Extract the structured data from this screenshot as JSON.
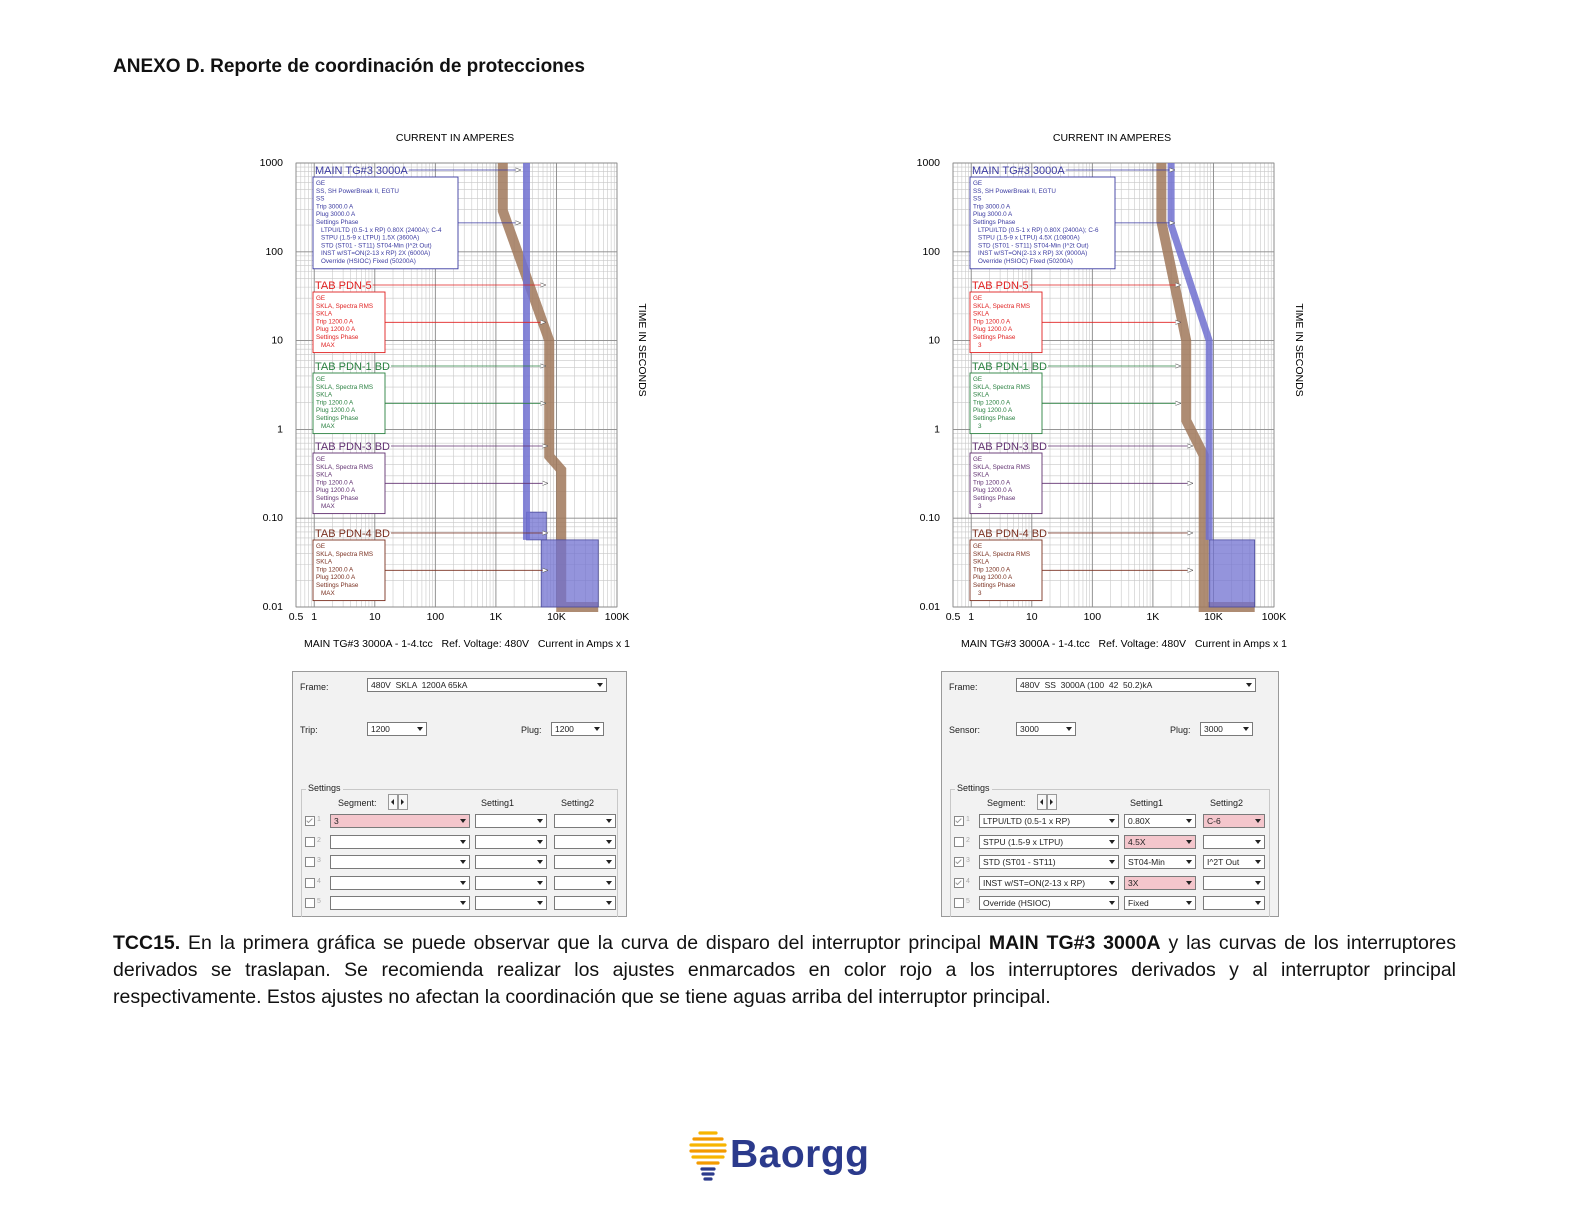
{
  "header": {
    "title": "ANEXO D. Reporte de coordinación de protecciones"
  },
  "chart_data": [
    {
      "type": "line",
      "title": "CURRENT IN AMPERES",
      "y_label": "TIME IN SECONDS",
      "footer": "MAIN TG#3 3000A - 1-4.tcc   Ref. Voltage: 480V   Current in Amps x 1",
      "log_x": true,
      "log_y": true,
      "grid": true,
      "xlim": [
        0.5,
        100000
      ],
      "ylim": [
        0.01,
        1000
      ],
      "xticks": [
        0.5,
        1,
        10,
        100,
        {
          "value": 1000,
          "label": "1K"
        },
        {
          "value": 10000,
          "label": "10K"
        },
        {
          "value": 100000,
          "label": "100K"
        }
      ],
      "yticks": [
        0.01,
        {
          "value": 0.1,
          "label": "0.10"
        },
        1,
        10,
        100,
        1000
      ],
      "devices": [
        {
          "name": "MAIN TG#3 3000A",
          "color": "#3a3aa0",
          "lines": [
            "GE",
            "SS, SH PowerBreak II, EGTU",
            "SS",
            "Trip 3000.0 A",
            "Plug 3000.0 A",
            "Settings Phase",
            "LTPU/LTD (0.5-1 x RP) 0.80X (2400A); C-4",
            "STPU (1.5-9 x LTPU) 1.5X (3600A)",
            "STD (ST01 - ST11) ST04-Min (I^2t Out)",
            "INST w/ST=ON(2-13 x RP) 2X (6000A)",
            "Override (HSIOC) Fixed (50200A)"
          ]
        },
        {
          "name": "TAB PDN-5",
          "color": "#e02020",
          "lines": [
            "GE",
            "SKLA, Spectra RMS",
            "SKLA",
            "Trip 1200.0 A",
            "Plug 1200.0 A",
            "Settings Phase",
            "MAX"
          ]
        },
        {
          "name": "TAB PDN-1 BD",
          "color": "#2a8040",
          "lines": [
            "GE",
            "SKLA, Spectra RMS",
            "SKLA",
            "Trip 1200.0 A",
            "Plug 1200.0 A",
            "Settings Phase",
            "MAX"
          ]
        },
        {
          "name": "TAB PDN-3 BD",
          "color": "#603070",
          "lines": [
            "GE",
            "SKLA, Spectra RMS",
            "SKLA",
            "Trip 1200.0 A",
            "Plug 1200.0 A",
            "Settings Phase",
            "MAX"
          ]
        },
        {
          "name": "TAB PDN-4 BD",
          "color": "#7a3020",
          "lines": [
            "GE",
            "SKLA, Spectra RMS",
            "SKLA",
            "Trip 1200.0 A",
            "Plug 1200.0 A",
            "Settings Phase",
            "MAX"
          ]
        }
      ],
      "series": [
        {
          "color": "#a0785a",
          "x": [
            1300,
            1300,
            7600,
            7600,
            12000,
            12000,
            49000
          ],
          "values": [
            1000,
            290,
            10,
            0.5,
            0.35,
            0.01,
            0.01
          ]
        },
        {
          "color": "#7070d0",
          "x": [
            3200,
            3200
          ],
          "values": [
            1000,
            0.057
          ],
          "regions": [
            {
              "x": [
                3200,
                6800
              ],
              "y": [
                0.057,
                0.117
              ]
            },
            {
              "x": [
                5600,
                49000
              ],
              "y": [
                0.01,
                0.057
              ]
            }
          ]
        }
      ]
    },
    {
      "type": "line",
      "title": "CURRENT IN AMPERES",
      "y_label": "TIME IN SECONDS",
      "footer": "MAIN TG#3 3000A - 1-4.tcc   Ref. Voltage: 480V   Current in Amps x 1",
      "log_x": true,
      "log_y": true,
      "grid": true,
      "xlim": [
        0.5,
        100000
      ],
      "ylim": [
        0.01,
        1000
      ],
      "xticks": [
        0.5,
        1,
        10,
        100,
        {
          "value": 1000,
          "label": "1K"
        },
        {
          "value": 10000,
          "label": "10K"
        },
        {
          "value": 100000,
          "label": "100K"
        }
      ],
      "yticks": [
        0.01,
        {
          "value": 0.1,
          "label": "0.10"
        },
        1,
        10,
        100,
        1000
      ],
      "devices": [
        {
          "name": "MAIN TG#3 3000A",
          "color": "#3a3aa0",
          "lines": [
            "GE",
            "SS, SH PowerBreak II, EGTU",
            "SS",
            "Trip 3000.0 A",
            "Plug 3000.0 A",
            "Settings Phase",
            "LTPU/LTD (0.5-1 x RP) 0.80X (2400A); C-6",
            "STPU (1.5-9 x LTPU) 4.5X (10800A)",
            "STD (ST01 - ST11) ST04-Min (I^2t Out)",
            "INST w/ST=ON(2-13 x RP) 3X (9000A)",
            "Override (HSIOC) Fixed (50200A)"
          ]
        },
        {
          "name": "TAB PDN-5",
          "color": "#e02020",
          "lines": [
            "GE",
            "SKLA, Spectra RMS",
            "SKLA",
            "Trip 1200.0 A",
            "Plug 1200.0 A",
            "Settings Phase",
            "3"
          ]
        },
        {
          "name": "TAB PDN-1 BD",
          "color": "#2a8040",
          "lines": [
            "GE",
            "SKLA, Spectra RMS",
            "SKLA",
            "Trip 1200.0 A",
            "Plug 1200.0 A",
            "Settings Phase",
            "3"
          ]
        },
        {
          "name": "TAB PDN-3 BD",
          "color": "#603070",
          "lines": [
            "GE",
            "SKLA, Spectra RMS",
            "SKLA",
            "Trip 1200.0 A",
            "Plug 1200.0 A",
            "Settings Phase",
            "3"
          ]
        },
        {
          "name": "TAB PDN-4 BD",
          "color": "#7a3020",
          "lines": [
            "GE",
            "SKLA, Spectra RMS",
            "SKLA",
            "Trip 1200.0 A",
            "Plug 1200.0 A",
            "Settings Phase",
            "3"
          ]
        }
      ],
      "series": [
        {
          "color": "#a0785a",
          "x": [
            1380,
            1380,
            3550,
            3550,
            6900,
            6900,
            48000
          ],
          "values": [
            1000,
            220,
            10,
            1.26,
            0.51,
            0.01,
            0.01
          ]
        },
        {
          "color": "#7070d0",
          "x": [
            2000,
            2000,
            8500,
            8500
          ],
          "values": [
            1000,
            200,
            10,
            0.057
          ],
          "regions": [
            {
              "x": [
                8500,
                48000
              ],
              "y": [
                0.01,
                0.057
              ]
            }
          ]
        }
      ]
    }
  ],
  "dialogs": [
    {
      "frame_label": "Frame:",
      "frame": "480V  SKLA  1200A 65kA",
      "trip_label": "Trip:",
      "trip": "1200",
      "plug_label": "Plug:",
      "plug": "1200",
      "group": "Settings",
      "headers": [
        "Segment:",
        "Setting1",
        "Setting2"
      ],
      "rows": [
        {
          "num": "1",
          "checked": true,
          "segment": "3",
          "highlight": [
            "segment"
          ]
        },
        {
          "num": "2",
          "checked": false
        },
        {
          "num": "3",
          "checked": false
        },
        {
          "num": "4",
          "checked": false
        },
        {
          "num": "5",
          "checked": false
        }
      ]
    },
    {
      "frame_label": "Frame:",
      "frame": "480V  SS  3000A (100  42  50.2)kA",
      "trip_label": "Sensor:",
      "trip": "3000",
      "plug_label": "Plug:",
      "plug": "3000",
      "group": "Settings",
      "headers": [
        "Segment:",
        "Setting1",
        "Setting2"
      ],
      "rows": [
        {
          "num": "1",
          "checked": true,
          "segment": "LTPU/LTD (0.5-1 x RP)",
          "setting1": "0.80X",
          "setting2": "C-6",
          "highlight": [
            "setting2"
          ]
        },
        {
          "num": "2",
          "checked": false,
          "segment": "STPU (1.5-9 x LTPU)",
          "setting1": "4.5X",
          "highlight": [
            "setting1"
          ]
        },
        {
          "num": "3",
          "checked": true,
          "segment": "STD (ST01 - ST11)",
          "setting1": "ST04-Min",
          "setting2": "I^2T Out"
        },
        {
          "num": "4",
          "checked": true,
          "segment": "INST w/ST=ON(2-13 x RP)",
          "setting1": "3X",
          "highlight": [
            "setting1"
          ]
        },
        {
          "num": "5",
          "checked": false,
          "segment": "Override (HSIOC)",
          "setting1": "Fixed"
        }
      ]
    }
  ],
  "paragraph": {
    "runs": [
      {
        "text": "TCC15.",
        "bold": true
      },
      {
        "text": " En la primera gráfica se puede observar que la curva de disparo del interruptor principal ",
        "bold": false
      },
      {
        "text": "MAIN TG#3 3000A",
        "bold": true
      },
      {
        "text": " y las curvas de los interruptores derivados se traslapan. Se recomienda realizar los ajustes enmarcados en color rojo a los interruptores derivados y al interruptor principal respectivamente. Estos ajustes no afectan la coordinación que se tiene aguas arriba del interruptor principal.",
        "bold": false
      }
    ]
  },
  "logo": {
    "text": "Baorgg"
  }
}
